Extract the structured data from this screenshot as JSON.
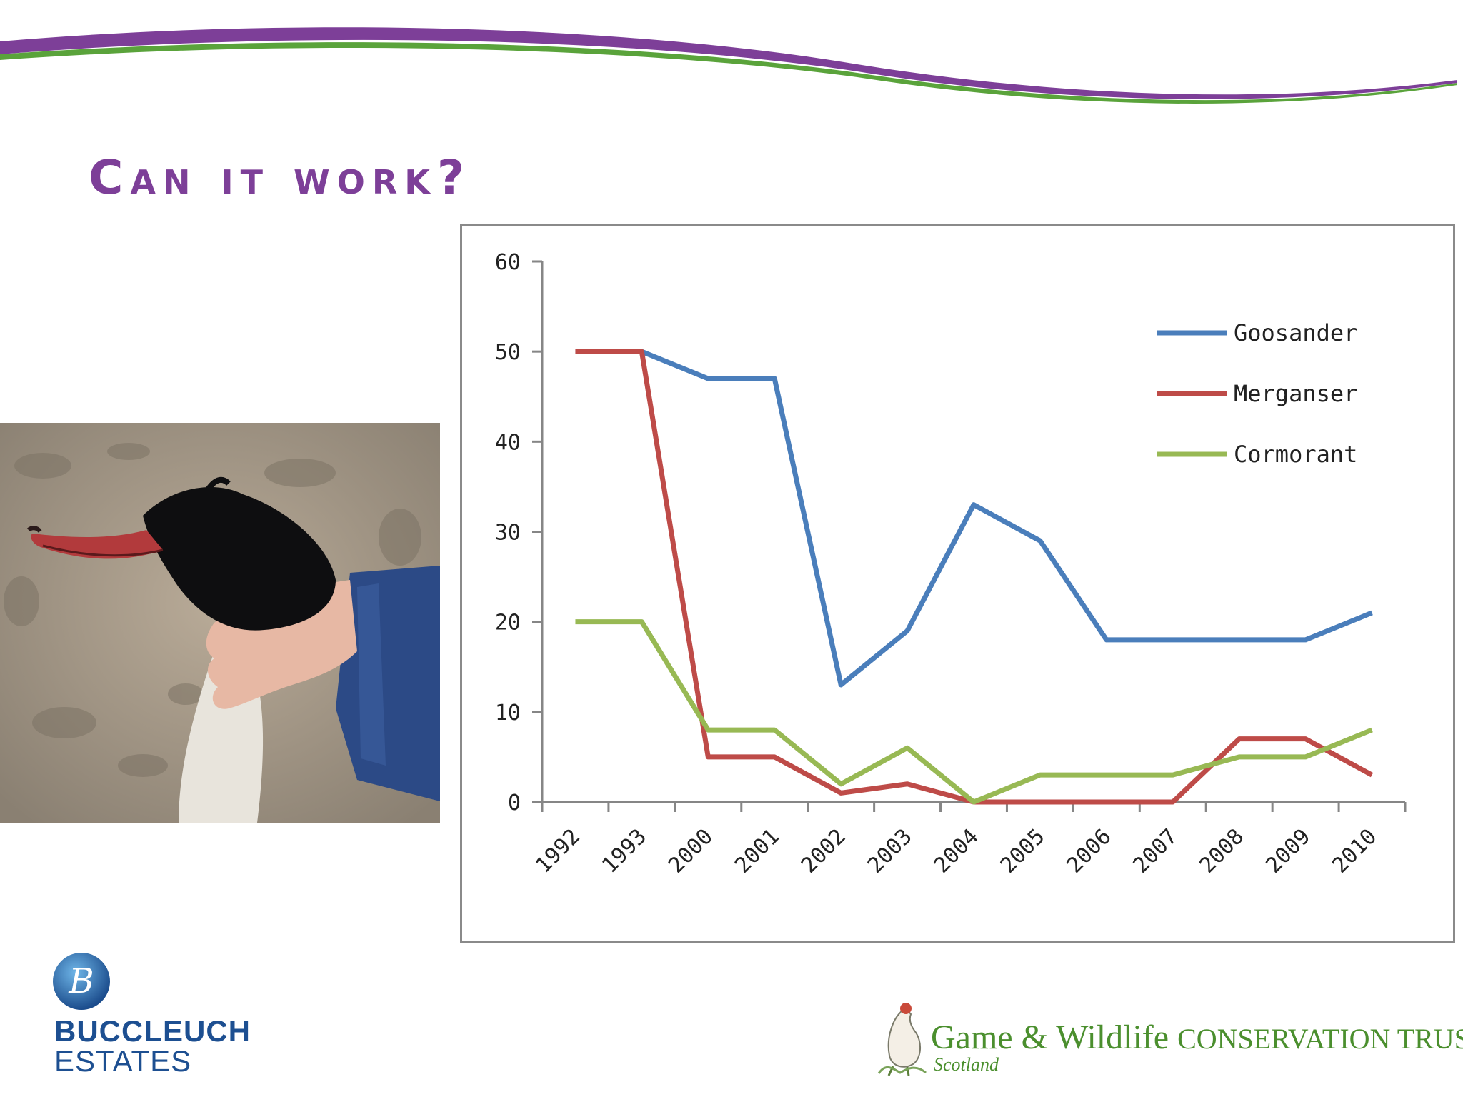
{
  "slide": {
    "title": "Can it work?",
    "accent_color": "#7d3f98",
    "photo_icon": "bird-in-hand-photo"
  },
  "logos": {
    "buccleuch": {
      "line1": "BUCCLEUCH",
      "line2": "ESTATES",
      "icon": "b-globe-logo",
      "color": "#1d4f91"
    },
    "gwct": {
      "name": "Game & Wildlife",
      "tagline": "CONSERVATION TRUST",
      "sub": "Scotland",
      "icon": "grouse-icon",
      "color": "#4b8f2e"
    }
  },
  "chart_data": {
    "type": "line",
    "categories": [
      "1992",
      "1993",
      "2000",
      "2001",
      "2002",
      "2003",
      "2004",
      "2005",
      "2006",
      "2007",
      "2008",
      "2009",
      "2010"
    ],
    "series": [
      {
        "name": "Goosander",
        "color": "#4a7ebb",
        "values": [
          50,
          50,
          47,
          47,
          13,
          19,
          33,
          29,
          18,
          18,
          18,
          18,
          21
        ]
      },
      {
        "name": "Merganser",
        "color": "#be4b48",
        "values": [
          50,
          50,
          5,
          5,
          1,
          2,
          0,
          0,
          0,
          0,
          7,
          7,
          3
        ]
      },
      {
        "name": "Cormorant",
        "color": "#98b954",
        "values": [
          20,
          20,
          8,
          8,
          2,
          6,
          0,
          3,
          3,
          3,
          5,
          5,
          8
        ]
      }
    ],
    "ylim": [
      0,
      60
    ],
    "yticks": [
      "0",
      "10",
      "20",
      "30",
      "40",
      "50",
      "60"
    ],
    "legend": "top-right",
    "grid": false,
    "title": "",
    "xlabel": "",
    "ylabel": ""
  }
}
